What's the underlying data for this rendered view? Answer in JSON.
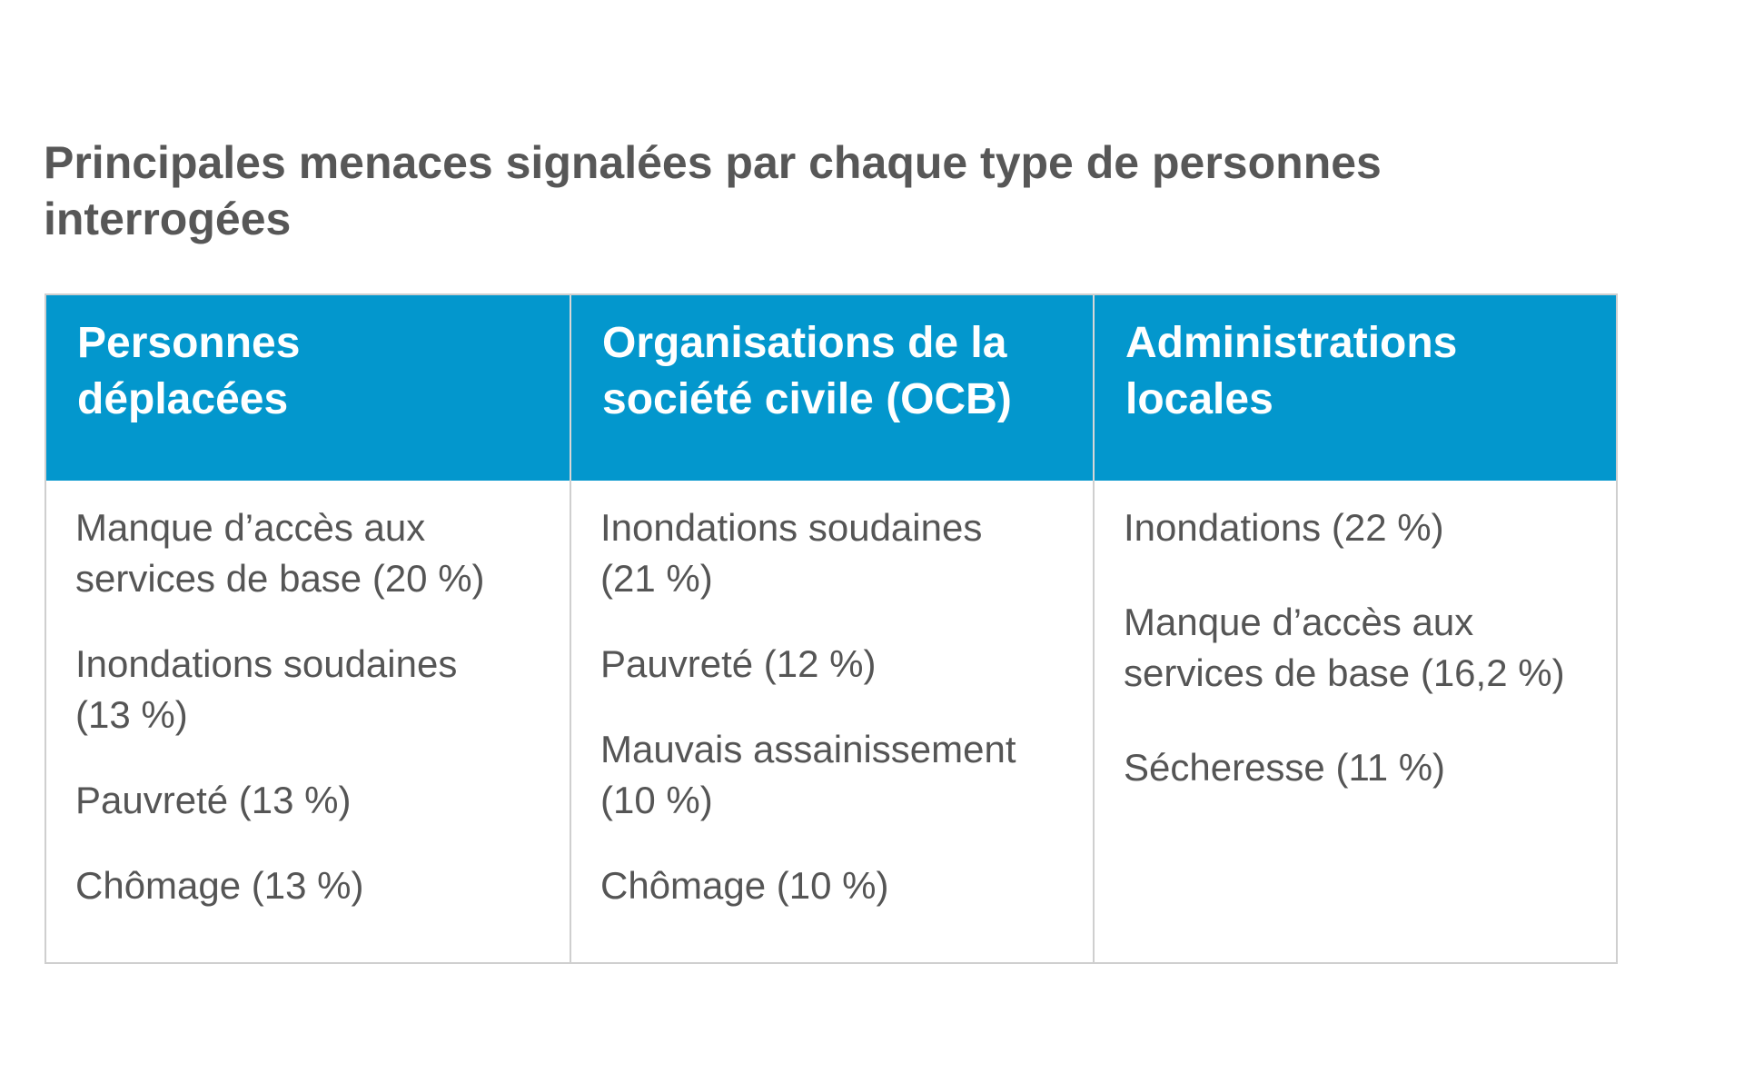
{
  "title": {
    "line1": "Principales menaces signalées par chaque type de personnes",
    "line2": "interrogées"
  },
  "columns": [
    {
      "header": [
        "Personnes",
        "déplacées"
      ],
      "items": [
        [
          "Manque d’accès aux",
          "services de base (20 %)"
        ],
        [
          "Inondations soudaines",
          "(13 %)"
        ],
        [
          "Pauvreté (13 %)"
        ],
        [
          "Chômage (13 %)"
        ]
      ]
    },
    {
      "header": [
        "Organisations de la",
        "société civile (OCB)"
      ],
      "items": [
        [
          "Inondations soudaines",
          "(21 %)"
        ],
        [
          "Pauvreté (12 %)"
        ],
        [
          "Mauvais assainissement",
          "(10 %)"
        ],
        [
          "Chômage (10 %)"
        ]
      ]
    },
    {
      "header": [
        "Administrations",
        "locales"
      ],
      "items": [
        [
          "Inondations (22 %)"
        ],
        [
          "Manque d’accès aux",
          "services de base (16,2 %)"
        ],
        [
          "Sécheresse (11 %)"
        ]
      ]
    }
  ],
  "colors": {
    "header_bg": "#0397cd",
    "header_text": "#ffffff",
    "body_text": "#555555",
    "border": "#cfcfcf"
  }
}
